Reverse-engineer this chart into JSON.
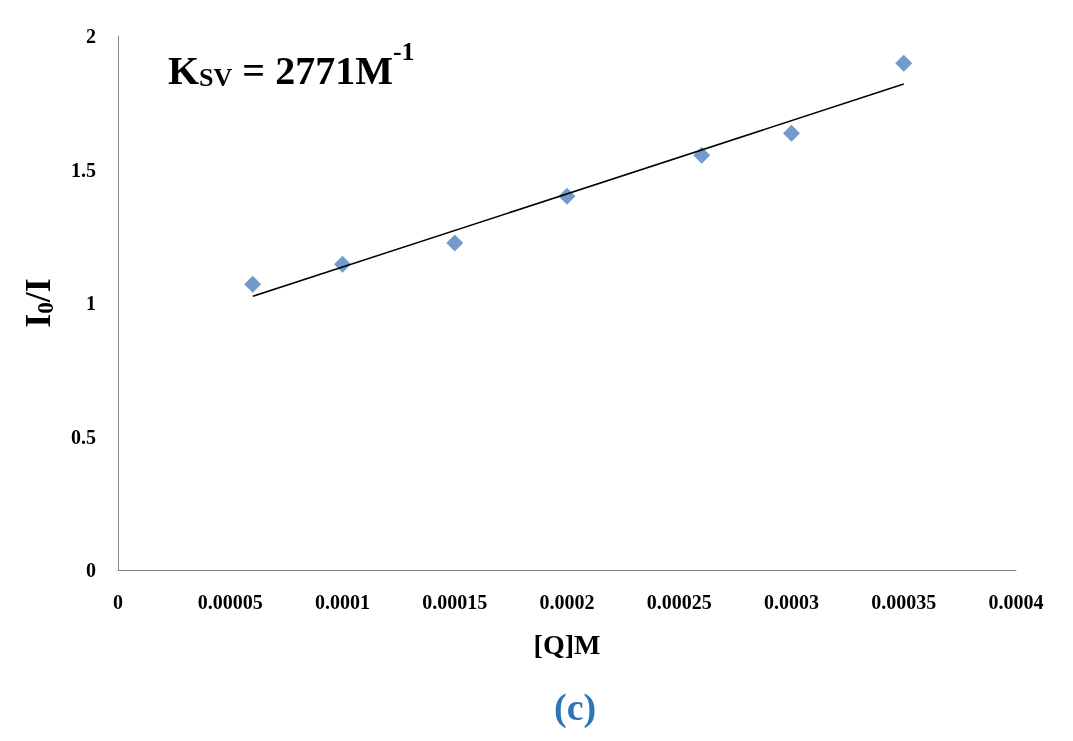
{
  "chart_data": {
    "type": "scatter",
    "xlabel": "[Q]M",
    "ylabel": "I$_{0}$/I",
    "marker": "diamond",
    "grid": false,
    "xlim": [
      0,
      0.0004
    ],
    "xticks": [
      0,
      {
        "value": 5e-05,
        "label": "0.00005"
      },
      0.0001,
      0.00015,
      0.0002,
      0.00025,
      0.0003,
      0.00035,
      0.0004
    ],
    "ylim": [
      0,
      2
    ],
    "yticks": [
      0,
      0.5,
      1,
      1.5,
      2
    ],
    "series": [
      {
        "color": "#4f81bd",
        "x": [
          6e-05,
          0.0001,
          0.00015,
          0.0002,
          0.00026,
          0.0003,
          0.00035
        ],
        "values": [
          1.07,
          1.145,
          1.225,
          1.4,
          1.553,
          1.636,
          1.898
        ]
      },
      {
        "type": "line",
        "marker": "none",
        "color": "#000000",
        "x": [
          6e-05,
          0.00035
        ],
        "values": [
          1.025,
          1.82
        ]
      }
    ],
    "annotations": [
      "K$_{SV}$ = 2771M$^{-1}$",
      "(c)"
    ]
  }
}
